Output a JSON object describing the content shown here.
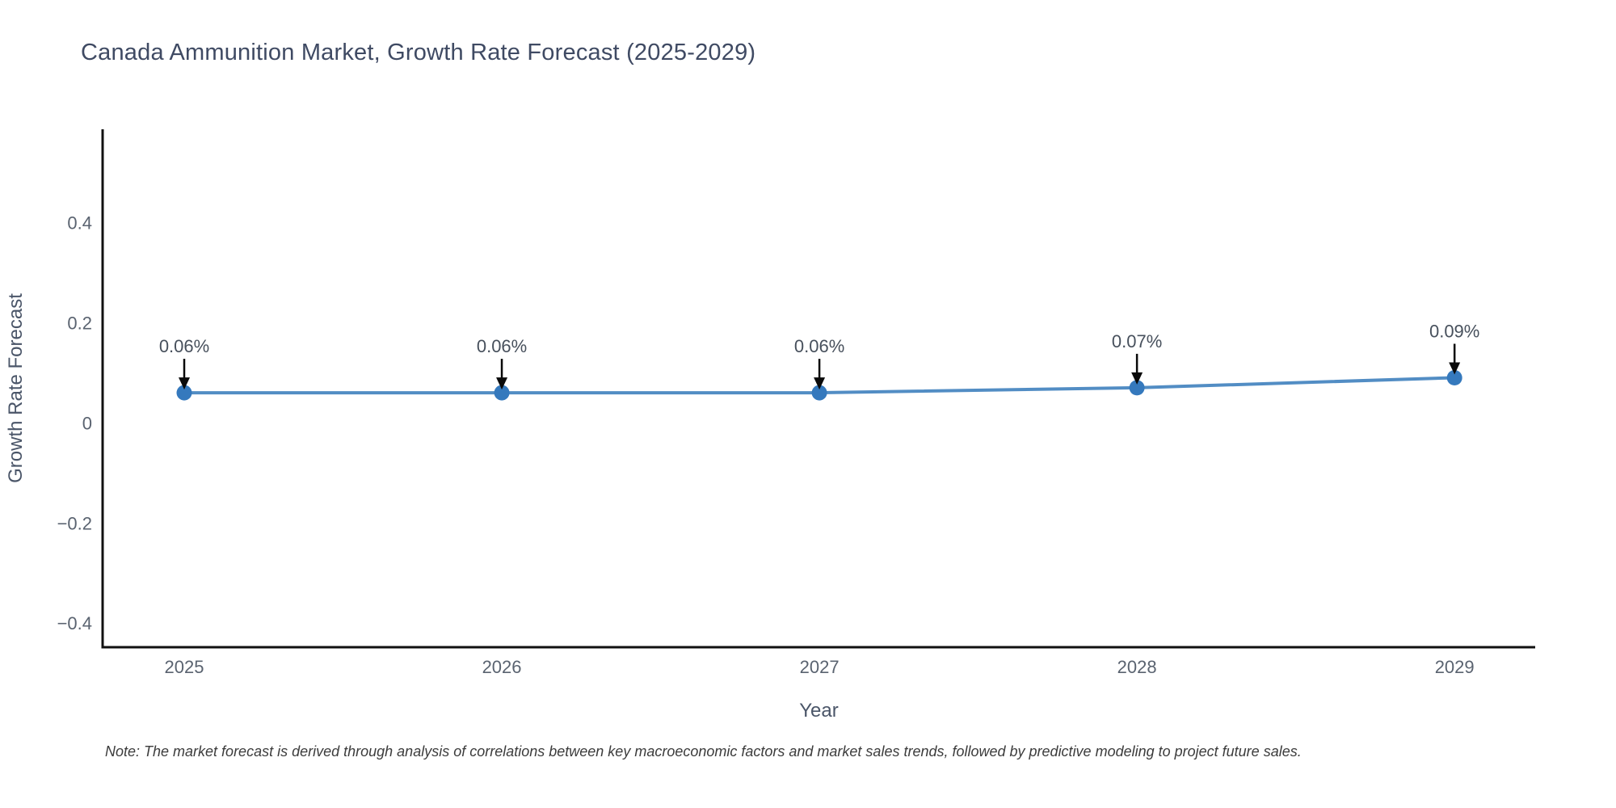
{
  "page": {
    "title": "Canada Ammunition Market, Growth Rate Forecast (2025-2029)",
    "footnote": "Note: The market forecast is derived through analysis of correlations between key macroeconomic factors and market sales trends, followed by predictive modeling to project future sales."
  },
  "colors": {
    "title": "#3f4a63",
    "axis_title": "#4a5568",
    "tick_label": "#5a6370",
    "annotation_text": "#47505c",
    "arrow": "#0a0a0a",
    "line": "#4383bf",
    "marker": "#3579bd",
    "spine": "#111111",
    "note": "#3c3c3c"
  },
  "chart_data": {
    "type": "line",
    "title": "Canada Ammunition Market, Growth Rate Forecast (2025-2029)",
    "x": [
      2025,
      2026,
      2027,
      2028,
      2029
    ],
    "series": [
      {
        "name": "Growth Rate Forecast",
        "values": [
          0.06,
          0.06,
          0.06,
          0.07,
          0.09
        ]
      }
    ],
    "point_labels": [
      "0.06%",
      "0.06%",
      "0.06%",
      "0.07%",
      "0.09%"
    ],
    "xlabel": "Year",
    "ylabel": "Growth Rate Forecast",
    "xtick_labels": [
      "2025",
      "2026",
      "2027",
      "2028",
      "2029"
    ],
    "ytick_labels": [
      "0.4",
      "0.2",
      "0",
      "−0.2",
      "−0.4"
    ],
    "ytick_values": [
      0.4,
      0.2,
      0,
      -0.2,
      -0.4
    ],
    "xlim": [
      2024.743,
      2029.254
    ],
    "ylim": [
      -0.448,
      0.586
    ],
    "grid": false,
    "legend": "none",
    "annotations_have_arrows": true
  }
}
